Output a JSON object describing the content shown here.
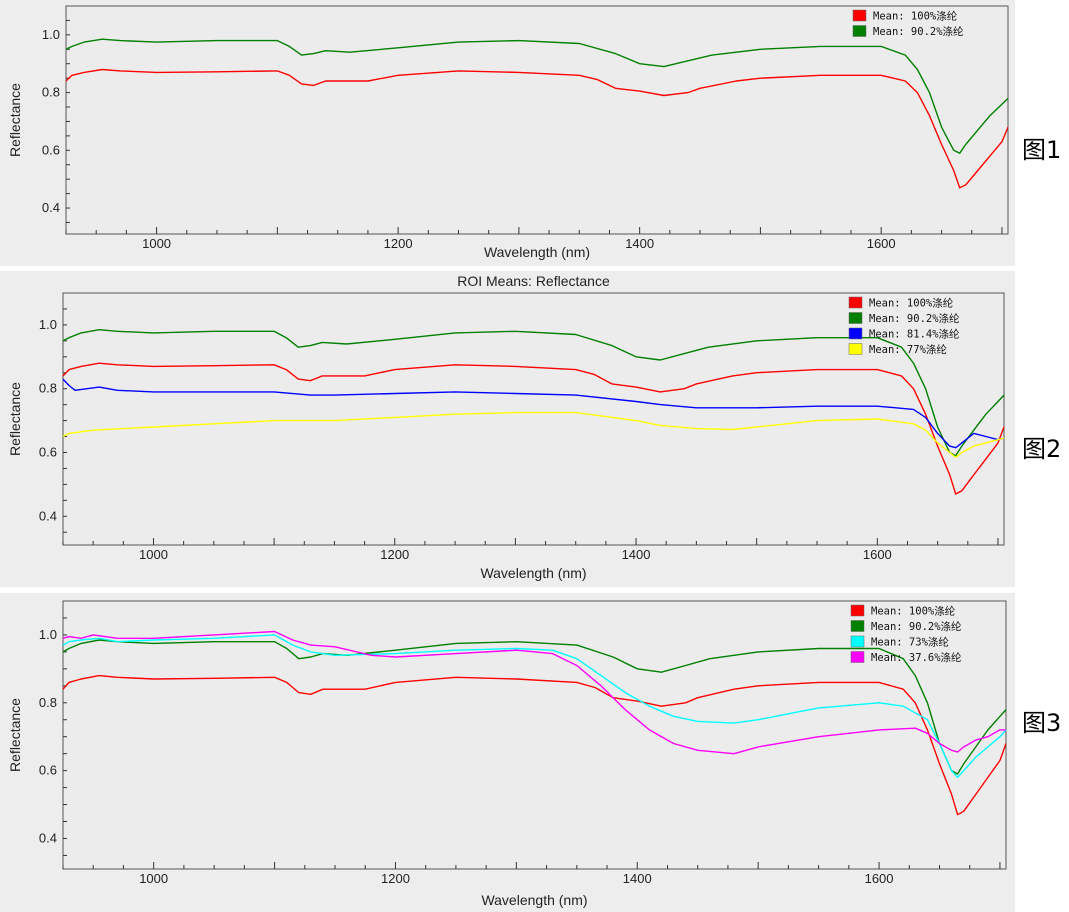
{
  "chart_data": [
    {
      "type": "line",
      "title": "",
      "side_label": "图1",
      "xlabel": "Wavelength (nm)",
      "ylabel": "Reflectance",
      "xlim": [
        925,
        1705
      ],
      "ylim": [
        0.31,
        1.1
      ],
      "xticks": [
        1000,
        1200,
        1400,
        1600
      ],
      "xtick_labels": [
        "1000",
        "1200",
        "1400",
        "1600"
      ],
      "yticks": [
        0.4,
        0.6,
        0.8,
        1.0
      ],
      "ytick_labels": [
        "0.4",
        "0.6",
        "0.8",
        "1.0"
      ],
      "legend_position": "top-right",
      "series": [
        {
          "name": "Mean: 100%涤纶",
          "color": "#ff0000",
          "x": [
            925,
            930,
            940,
            955,
            970,
            1000,
            1050,
            1100,
            1110,
            1120,
            1130,
            1140,
            1155,
            1175,
            1200,
            1250,
            1300,
            1350,
            1365,
            1380,
            1400,
            1420,
            1440,
            1450,
            1480,
            1500,
            1550,
            1600,
            1620,
            1630,
            1640,
            1650,
            1660,
            1665,
            1670,
            1680,
            1690,
            1700,
            1705
          ],
          "y": [
            0.84,
            0.86,
            0.87,
            0.88,
            0.875,
            0.87,
            0.872,
            0.875,
            0.86,
            0.83,
            0.825,
            0.84,
            0.84,
            0.84,
            0.86,
            0.875,
            0.87,
            0.86,
            0.845,
            0.815,
            0.805,
            0.79,
            0.8,
            0.815,
            0.84,
            0.85,
            0.86,
            0.86,
            0.84,
            0.8,
            0.72,
            0.62,
            0.53,
            0.47,
            0.48,
            0.53,
            0.58,
            0.63,
            0.68
          ]
        },
        {
          "name": "Mean: 90.2%涤纶",
          "color": "#008000",
          "x": [
            925,
            930,
            940,
            955,
            970,
            1000,
            1050,
            1100,
            1110,
            1120,
            1130,
            1140,
            1160,
            1200,
            1250,
            1300,
            1350,
            1380,
            1400,
            1420,
            1440,
            1460,
            1500,
            1550,
            1600,
            1620,
            1630,
            1640,
            1650,
            1660,
            1665,
            1670,
            1680,
            1690,
            1700,
            1705
          ],
          "y": [
            0.95,
            0.96,
            0.975,
            0.985,
            0.98,
            0.975,
            0.98,
            0.98,
            0.96,
            0.93,
            0.935,
            0.945,
            0.94,
            0.955,
            0.975,
            0.98,
            0.97,
            0.935,
            0.9,
            0.89,
            0.91,
            0.93,
            0.95,
            0.96,
            0.96,
            0.93,
            0.88,
            0.8,
            0.68,
            0.6,
            0.59,
            0.62,
            0.67,
            0.72,
            0.76,
            0.78
          ]
        }
      ]
    },
    {
      "type": "line",
      "title": "ROI Means: Reflectance",
      "side_label": "图2",
      "xlabel": "Wavelength (nm)",
      "ylabel": "Reflectance",
      "xlim": [
        925,
        1705
      ],
      "ylim": [
        0.31,
        1.1
      ],
      "xticks": [
        1000,
        1200,
        1400,
        1600
      ],
      "xtick_labels": [
        "1000",
        "1200",
        "1400",
        "1600"
      ],
      "yticks": [
        0.4,
        0.6,
        0.8,
        1.0
      ],
      "ytick_labels": [
        "0.4",
        "0.6",
        "0.8",
        "1.0"
      ],
      "legend_position": "top-right",
      "series": [
        {
          "name": "Mean: 100%涤纶",
          "color": "#ff0000",
          "x": [
            925,
            930,
            940,
            955,
            970,
            1000,
            1050,
            1100,
            1110,
            1120,
            1130,
            1140,
            1155,
            1175,
            1200,
            1250,
            1300,
            1350,
            1365,
            1380,
            1400,
            1420,
            1440,
            1450,
            1480,
            1500,
            1550,
            1600,
            1620,
            1630,
            1640,
            1650,
            1660,
            1665,
            1670,
            1680,
            1690,
            1700,
            1705
          ],
          "y": [
            0.84,
            0.86,
            0.87,
            0.88,
            0.875,
            0.87,
            0.872,
            0.875,
            0.86,
            0.83,
            0.825,
            0.84,
            0.84,
            0.84,
            0.86,
            0.875,
            0.87,
            0.86,
            0.845,
            0.815,
            0.805,
            0.79,
            0.8,
            0.815,
            0.84,
            0.85,
            0.86,
            0.86,
            0.84,
            0.8,
            0.72,
            0.62,
            0.53,
            0.47,
            0.48,
            0.53,
            0.58,
            0.63,
            0.68
          ]
        },
        {
          "name": "Mean: 90.2%涤纶",
          "color": "#008000",
          "x": [
            925,
            930,
            940,
            955,
            970,
            1000,
            1050,
            1100,
            1110,
            1120,
            1130,
            1140,
            1160,
            1200,
            1250,
            1300,
            1350,
            1380,
            1400,
            1420,
            1440,
            1460,
            1500,
            1550,
            1600,
            1620,
            1630,
            1640,
            1650,
            1660,
            1665,
            1670,
            1680,
            1690,
            1700,
            1705
          ],
          "y": [
            0.95,
            0.96,
            0.975,
            0.985,
            0.98,
            0.975,
            0.98,
            0.98,
            0.96,
            0.93,
            0.935,
            0.945,
            0.94,
            0.955,
            0.975,
            0.98,
            0.97,
            0.935,
            0.9,
            0.89,
            0.91,
            0.93,
            0.95,
            0.96,
            0.96,
            0.93,
            0.88,
            0.8,
            0.68,
            0.6,
            0.59,
            0.62,
            0.67,
            0.72,
            0.76,
            0.78
          ]
        },
        {
          "name": "Mean: 81.4%涤纶",
          "color": "#0000ff",
          "x": [
            925,
            930,
            935,
            945,
            955,
            970,
            1000,
            1050,
            1100,
            1130,
            1150,
            1200,
            1250,
            1300,
            1350,
            1400,
            1420,
            1450,
            1500,
            1550,
            1600,
            1630,
            1640,
            1650,
            1660,
            1665,
            1670,
            1680,
            1690,
            1700,
            1705
          ],
          "y": [
            0.83,
            0.81,
            0.795,
            0.8,
            0.805,
            0.795,
            0.79,
            0.79,
            0.79,
            0.78,
            0.78,
            0.785,
            0.79,
            0.785,
            0.78,
            0.76,
            0.75,
            0.74,
            0.74,
            0.745,
            0.745,
            0.735,
            0.71,
            0.66,
            0.62,
            0.615,
            0.63,
            0.66,
            0.65,
            0.64,
            0.645
          ]
        },
        {
          "name": "Mean: 77%涤纶",
          "color": "#ffff00",
          "x": [
            925,
            930,
            950,
            1000,
            1050,
            1100,
            1150,
            1200,
            1250,
            1300,
            1350,
            1400,
            1420,
            1450,
            1480,
            1500,
            1550,
            1600,
            1630,
            1640,
            1650,
            1660,
            1665,
            1670,
            1680,
            1690,
            1700,
            1705
          ],
          "y": [
            0.65,
            0.66,
            0.67,
            0.68,
            0.69,
            0.7,
            0.7,
            0.71,
            0.72,
            0.725,
            0.725,
            0.7,
            0.685,
            0.675,
            0.672,
            0.68,
            0.7,
            0.705,
            0.69,
            0.67,
            0.63,
            0.6,
            0.585,
            0.6,
            0.62,
            0.63,
            0.64,
            0.645
          ]
        }
      ]
    },
    {
      "type": "line",
      "title": "",
      "side_label": "图3",
      "xlabel": "Wavelength (nm)",
      "ylabel": "Reflectance",
      "xlim": [
        925,
        1705
      ],
      "ylim": [
        0.31,
        1.1
      ],
      "xticks": [
        1000,
        1200,
        1400,
        1600
      ],
      "xtick_labels": [
        "1000",
        "1200",
        "1400",
        "1600"
      ],
      "yticks": [
        0.4,
        0.6,
        0.8,
        1.0
      ],
      "ytick_labels": [
        "0.4",
        "0.6",
        "0.8",
        "1.0"
      ],
      "legend_position": "top-right",
      "series": [
        {
          "name": "Mean: 100%涤纶",
          "color": "#ff0000",
          "x": [
            925,
            930,
            940,
            955,
            970,
            1000,
            1050,
            1100,
            1110,
            1120,
            1130,
            1140,
            1155,
            1175,
            1200,
            1250,
            1300,
            1350,
            1365,
            1380,
            1400,
            1420,
            1440,
            1450,
            1480,
            1500,
            1550,
            1600,
            1620,
            1630,
            1640,
            1650,
            1660,
            1665,
            1670,
            1680,
            1690,
            1700,
            1705
          ],
          "y": [
            0.84,
            0.86,
            0.87,
            0.88,
            0.875,
            0.87,
            0.872,
            0.875,
            0.86,
            0.83,
            0.825,
            0.84,
            0.84,
            0.84,
            0.86,
            0.875,
            0.87,
            0.86,
            0.845,
            0.815,
            0.805,
            0.79,
            0.8,
            0.815,
            0.84,
            0.85,
            0.86,
            0.86,
            0.84,
            0.8,
            0.72,
            0.62,
            0.53,
            0.47,
            0.48,
            0.53,
            0.58,
            0.63,
            0.68
          ]
        },
        {
          "name": "Mean: 90.2%涤纶",
          "color": "#008000",
          "x": [
            925,
            930,
            940,
            955,
            970,
            1000,
            1050,
            1100,
            1110,
            1120,
            1130,
            1140,
            1160,
            1200,
            1250,
            1300,
            1350,
            1380,
            1400,
            1420,
            1440,
            1460,
            1500,
            1550,
            1600,
            1620,
            1630,
            1640,
            1650,
            1660,
            1665,
            1670,
            1680,
            1690,
            1700,
            1705
          ],
          "y": [
            0.95,
            0.96,
            0.975,
            0.985,
            0.98,
            0.975,
            0.98,
            0.98,
            0.96,
            0.93,
            0.935,
            0.945,
            0.94,
            0.955,
            0.975,
            0.98,
            0.97,
            0.935,
            0.9,
            0.89,
            0.91,
            0.93,
            0.95,
            0.96,
            0.96,
            0.93,
            0.88,
            0.8,
            0.68,
            0.6,
            0.59,
            0.62,
            0.67,
            0.72,
            0.76,
            0.78
          ]
        },
        {
          "name": "Mean: 73%涤纶",
          "color": "#00ffff",
          "x": [
            925,
            930,
            940,
            955,
            970,
            1000,
            1050,
            1100,
            1115,
            1130,
            1150,
            1200,
            1250,
            1300,
            1330,
            1350,
            1370,
            1390,
            1410,
            1430,
            1450,
            1480,
            1500,
            1550,
            1600,
            1620,
            1640,
            1650,
            1660,
            1665,
            1670,
            1680,
            1690,
            1700,
            1705
          ],
          "y": [
            0.97,
            0.98,
            0.985,
            0.99,
            0.98,
            0.985,
            0.99,
            1.0,
            0.97,
            0.95,
            0.94,
            0.945,
            0.955,
            0.96,
            0.955,
            0.93,
            0.88,
            0.83,
            0.79,
            0.76,
            0.745,
            0.74,
            0.75,
            0.785,
            0.8,
            0.79,
            0.75,
            0.68,
            0.6,
            0.58,
            0.6,
            0.64,
            0.67,
            0.7,
            0.72
          ]
        },
        {
          "name": "Mean: 37.6%涤纶",
          "color": "#ff00ff",
          "x": [
            925,
            930,
            940,
            950,
            970,
            1000,
            1050,
            1100,
            1115,
            1130,
            1150,
            1180,
            1200,
            1250,
            1300,
            1330,
            1350,
            1370,
            1390,
            1410,
            1430,
            1450,
            1480,
            1500,
            1550,
            1600,
            1630,
            1640,
            1650,
            1660,
            1665,
            1670,
            1680,
            1690,
            1700,
            1705
          ],
          "y": [
            0.99,
            0.995,
            0.99,
            1.0,
            0.99,
            0.99,
            1.0,
            1.01,
            0.985,
            0.97,
            0.965,
            0.94,
            0.935,
            0.945,
            0.955,
            0.945,
            0.91,
            0.85,
            0.78,
            0.72,
            0.68,
            0.66,
            0.65,
            0.67,
            0.7,
            0.72,
            0.725,
            0.71,
            0.68,
            0.66,
            0.655,
            0.67,
            0.69,
            0.7,
            0.72,
            0.72
          ]
        }
      ]
    }
  ]
}
